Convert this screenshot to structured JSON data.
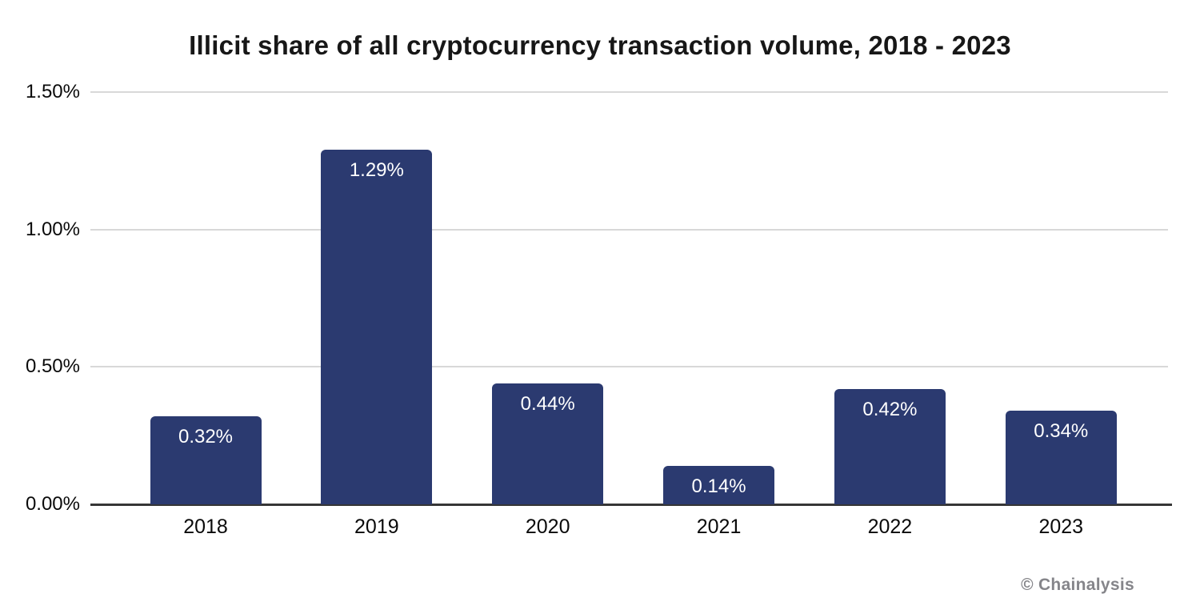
{
  "title": "Illicit share of all cryptocurrency transaction volume, 2018 - 2023",
  "watermark": "© Chainalysis",
  "colors": {
    "bar": "#2b3a70",
    "gridline": "#d8d8d8",
    "axis": "#363636",
    "bar_label": "#ffffff",
    "watermark": "#85858a",
    "background": "#ffffff"
  },
  "chart_data": {
    "type": "bar",
    "title": "Illicit share of all cryptocurrency transaction volume, 2018 - 2023",
    "categories": [
      "2018",
      "2019",
      "2020",
      "2021",
      "2022",
      "2023"
    ],
    "values": [
      0.32,
      1.29,
      0.44,
      0.14,
      0.42,
      0.34
    ],
    "value_labels": [
      "0.32%",
      "1.29%",
      "0.44%",
      "0.14%",
      "0.42%",
      "0.34%"
    ],
    "xlabel": "",
    "ylabel": "",
    "ylim": [
      0,
      1.5
    ],
    "yticks": [
      0,
      0.5,
      1.0,
      1.5
    ],
    "ytick_labels": [
      "0.00%",
      "0.50%",
      "1.00%",
      "1.50%"
    ],
    "grid": true,
    "legend": false,
    "bar_labels_inside": true
  }
}
